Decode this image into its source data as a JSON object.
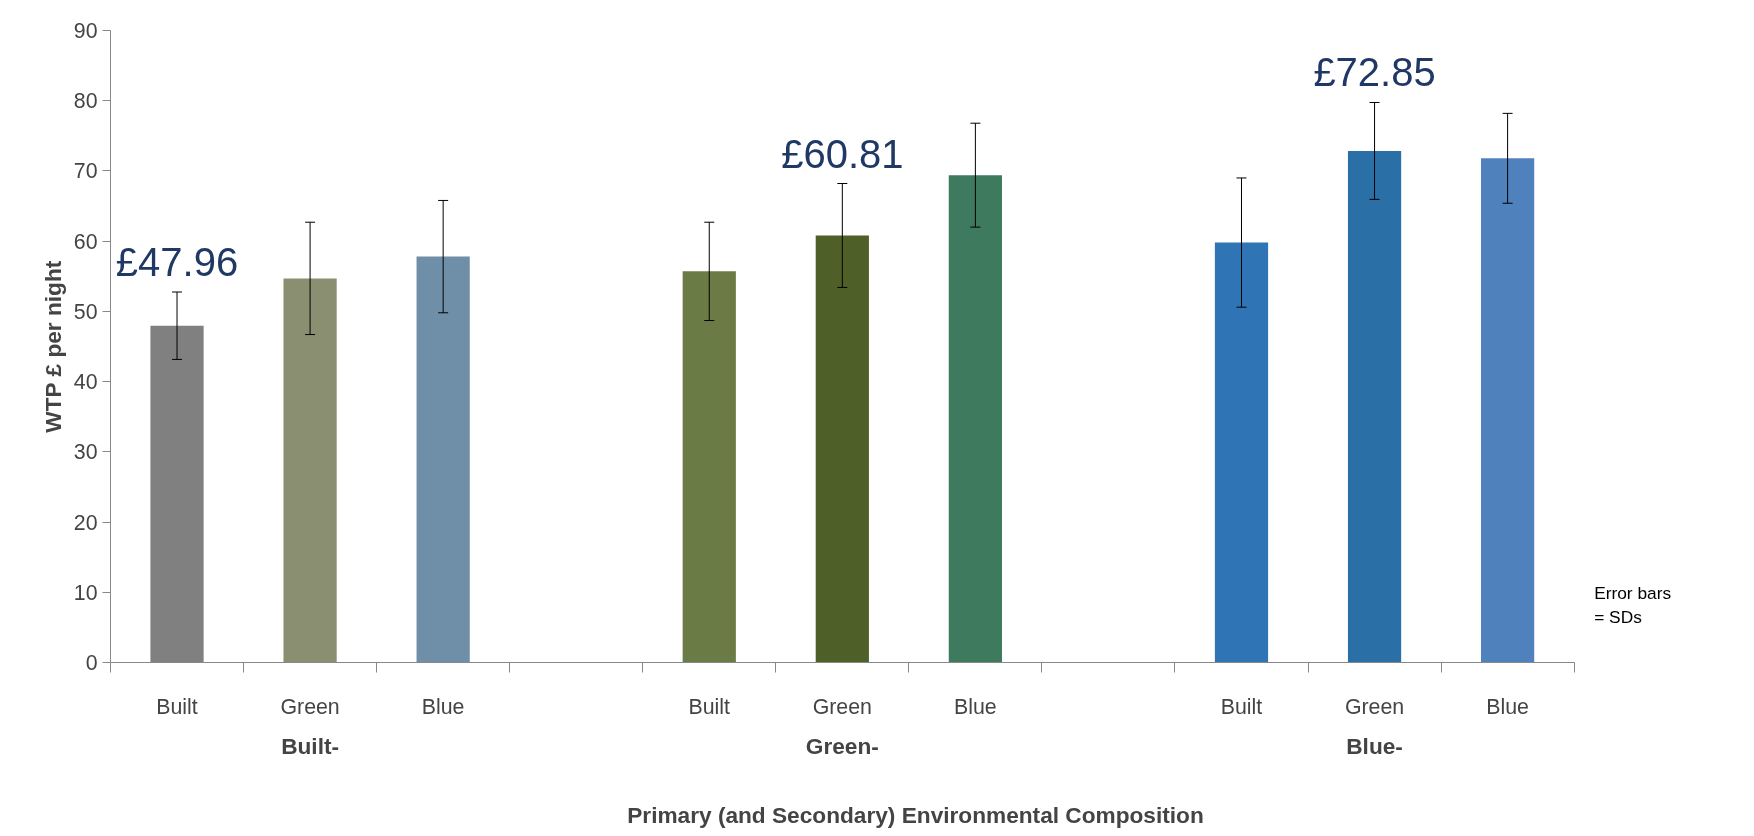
{
  "chart_data": {
    "type": "bar",
    "ylabel": "WTP £ per night",
    "xlabel": "Primary (and Secondary) Environmental Composition",
    "categories": [
      "Built",
      "Green",
      "Blue",
      null,
      "Built",
      "Green",
      "Blue",
      null,
      "Built",
      "Green",
      "Blue"
    ],
    "values": [
      47.96,
      54.7,
      57.8,
      null,
      55.7,
      60.81,
      69.4,
      null,
      59.8,
      72.85,
      71.8
    ],
    "errors": [
      4.8,
      8.0,
      8.0,
      null,
      7.0,
      7.4,
      7.4,
      null,
      9.2,
      6.9,
      6.4
    ],
    "colors": [
      "#808080",
      "#8a8f72",
      "#6f8fa8",
      null,
      "#6b7b45",
      "#4e6028",
      "#3e7a5e",
      null,
      "#2f75b6",
      "#2a6fa6",
      "#4f81bd"
    ],
    "value_labels": [
      "£47.96",
      null,
      null,
      null,
      null,
      "£60.81",
      null,
      null,
      null,
      "£72.85",
      null
    ],
    "ylim": [
      0,
      90
    ],
    "yticks": [
      0,
      10,
      20,
      30,
      40,
      50,
      60,
      70,
      80,
      90
    ],
    "grid": false,
    "annotations": [
      "Built-",
      "Green-",
      "Blue-",
      "Error bars\n= SDs"
    ]
  }
}
